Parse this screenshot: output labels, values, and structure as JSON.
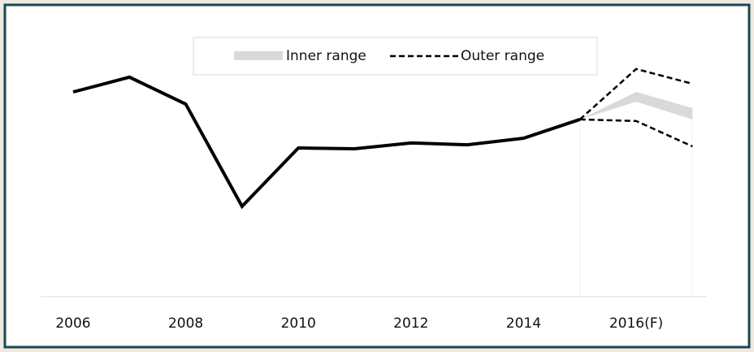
{
  "chart_data": {
    "type": "line",
    "categories": [
      "2006",
      null,
      "2008",
      null,
      "2010",
      null,
      "2012",
      null,
      "2014",
      null,
      "2016(F)",
      null
    ],
    "values": [
      77.5,
      83.1,
      72.9,
      34.2,
      56.3,
      56.0,
      58.2,
      57.5,
      60.0,
      67.1,
      null,
      null
    ],
    "color": "#000000",
    "ranges": [
      {
        "name": "Inner range",
        "style": "band",
        "color": "#d9d9d9",
        "upper": [
          null,
          null,
          null,
          null,
          null,
          null,
          null,
          null,
          null,
          67.1,
          77.5,
          71.4
        ],
        "lower": [
          null,
          null,
          null,
          null,
          null,
          null,
          null,
          null,
          null,
          67.1,
          73.8,
          67.1
        ]
      },
      {
        "name": "Outer range",
        "style": "dashed",
        "color": "#000000",
        "upper": [
          null,
          null,
          null,
          null,
          null,
          null,
          null,
          null,
          null,
          67.1,
          86.2,
          80.6
        ],
        "lower": [
          null,
          null,
          null,
          null,
          null,
          null,
          null,
          null,
          null,
          67.1,
          66.5,
          56.9
        ]
      }
    ],
    "ylim": [
      0,
      100
    ]
  }
}
